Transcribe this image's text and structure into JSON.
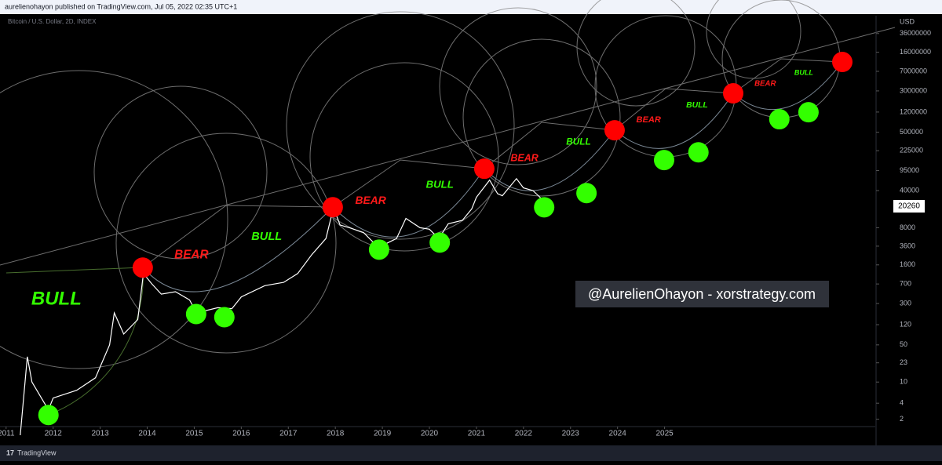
{
  "header": {
    "text": "aurelienohayon published on TradingView.com, Jul 05, 2022 02:35 UTC+1"
  },
  "footer": {
    "brand": "TradingView"
  },
  "watermark": {
    "text": "@AurelienOhayon - xorstrategy.com"
  },
  "chart_data": {
    "type": "line",
    "subtitle": "Bitcoin / U.S. Dollar, 2D, INDEX",
    "y_axis_label": "USD",
    "log_scale": true,
    "grid": false,
    "xlim": [
      2010.87,
      2029.48
    ],
    "xticks": [
      2011,
      2012,
      2013,
      2014,
      2015,
      2016,
      2017,
      2018,
      2019,
      2020,
      2021,
      2022,
      2023,
      2024,
      2025
    ],
    "ylim": [
      1,
      78000000
    ],
    "yticks": [
      36000000,
      16000000,
      7000000,
      3000000,
      1200000,
      500000,
      225000,
      95000,
      40000,
      8000,
      3600,
      1600,
      700,
      300,
      120,
      50,
      23,
      10,
      4,
      2
    ],
    "last_price": 20260,
    "x": [
      2011.3,
      2011.45,
      2011.55,
      2011.9,
      2012.0,
      2012.5,
      2012.9,
      2013.2,
      2013.3,
      2013.5,
      2013.8,
      2013.92,
      2014.1,
      2014.3,
      2014.6,
      2014.9,
      2015.05,
      2015.5,
      2015.8,
      2016.0,
      2016.5,
      2016.9,
      2017.2,
      2017.5,
      2017.8,
      2017.96,
      2018.1,
      2018.3,
      2018.6,
      2018.9,
      2019.0,
      2019.3,
      2019.5,
      2019.8,
      2020.0,
      2020.2,
      2020.4,
      2020.7,
      2020.9,
      2021.0,
      2021.28,
      2021.45,
      2021.55,
      2021.85,
      2022.0,
      2022.2,
      2022.35,
      2022.5
    ],
    "series": [
      {
        "name": "BTCUSD",
        "color": "#ffffff",
        "values": [
          1,
          30,
          10,
          3,
          5,
          7,
          12,
          50,
          200,
          80,
          150,
          1100,
          700,
          450,
          500,
          350,
          200,
          250,
          240,
          400,
          650,
          750,
          1100,
          2500,
          5000,
          19000,
          9000,
          8000,
          6500,
          3500,
          3700,
          5000,
          12000,
          8000,
          7500,
          5000,
          9500,
          11000,
          18000,
          30000,
          63000,
          35000,
          32000,
          67000,
          45000,
          40000,
          30000,
          20260
        ]
      }
    ],
    "signals": {
      "tops": {
        "color": "#ff0000",
        "x": [
          2013.905,
          2017.945,
          2021.167,
          2023.938,
          2026.459,
          2028.779
        ],
        "y": [
          1420,
          19450,
          103000,
          546000,
          2700000,
          10500000
        ]
      },
      "bottoms": {
        "color": "#33ff00",
        "x": [
          2011.9,
          2015.04,
          2015.64,
          2018.93,
          2020.22,
          2022.44,
          2023.34,
          2024.99,
          2025.72,
          2027.44,
          2028.06
        ],
        "y": [
          2.4,
          190,
          166,
          3100,
          4200,
          19400,
          35900,
          150000,
          210000,
          879000,
          1190000
        ]
      }
    },
    "phase_labels": [
      {
        "text": "BULL",
        "color": "#33ff00",
        "x": 2012.07,
        "y": 352
      },
      {
        "text": "BEAR",
        "color": "#ff1a1a",
        "x": 2014.94,
        "y": 2440
      },
      {
        "text": "BULL",
        "color": "#33ff00",
        "x": 2016.54,
        "y": 5350
      },
      {
        "text": "BEAR",
        "color": "#ff1a1a",
        "x": 2018.75,
        "y": 25500
      },
      {
        "text": "BULL",
        "color": "#33ff00",
        "x": 2020.22,
        "y": 50500
      },
      {
        "text": "BEAR",
        "color": "#ff1a1a",
        "x": 2022.02,
        "y": 160000
      },
      {
        "text": "BULL",
        "color": "#33ff00",
        "x": 2023.17,
        "y": 327000
      },
      {
        "text": "BEAR",
        "color": "#ff1a1a",
        "x": 2024.66,
        "y": 849000
      },
      {
        "text": "BULL",
        "color": "#33ff00",
        "x": 2025.69,
        "y": 1620000
      },
      {
        "text": "BEAR",
        "color": "#ff1a1a",
        "x": 2027.14,
        "y": 4050000
      },
      {
        "text": "BULL",
        "color": "#33ff00",
        "x": 2027.96,
        "y": 6530000
      }
    ]
  }
}
